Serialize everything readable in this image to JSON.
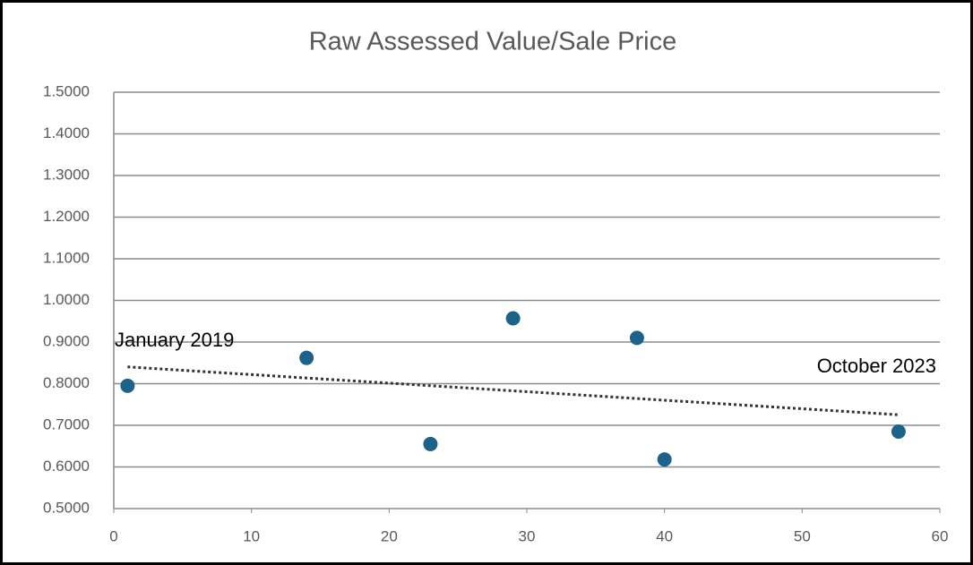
{
  "chart_data": {
    "type": "scatter",
    "title": "Raw Assessed Value/Sale Price",
    "x": [
      1,
      14,
      23,
      29,
      38,
      40,
      57
    ],
    "values": [
      0.795,
      0.862,
      0.655,
      0.957,
      0.91,
      0.618,
      0.685
    ],
    "color": "#1f6289",
    "xlim": [
      0,
      60
    ],
    "xticks": [
      0,
      10,
      20,
      30,
      40,
      50,
      60
    ],
    "ylim": [
      0.5,
      1.5
    ],
    "yticks": [
      {
        "value": 0.5,
        "label": "0.5000"
      },
      {
        "value": 0.6,
        "label": "0.6000"
      },
      {
        "value": 0.7,
        "label": "0.7000"
      },
      {
        "value": 0.8,
        "label": "0.8000"
      },
      {
        "value": 0.9,
        "label": "0.9000"
      },
      {
        "value": 1.0,
        "label": "1.0000"
      },
      {
        "value": 1.1,
        "label": "1.1000"
      },
      {
        "value": 1.2,
        "label": "1.2000"
      },
      {
        "value": 1.3,
        "label": "1.3000"
      },
      {
        "value": 1.4,
        "label": "1.4000"
      },
      {
        "value": 1.5,
        "label": "1.5000"
      }
    ],
    "grid": true,
    "trendline": true,
    "annotations": [
      {
        "text": "January 2019"
      },
      {
        "text": "October 2023"
      }
    ]
  }
}
